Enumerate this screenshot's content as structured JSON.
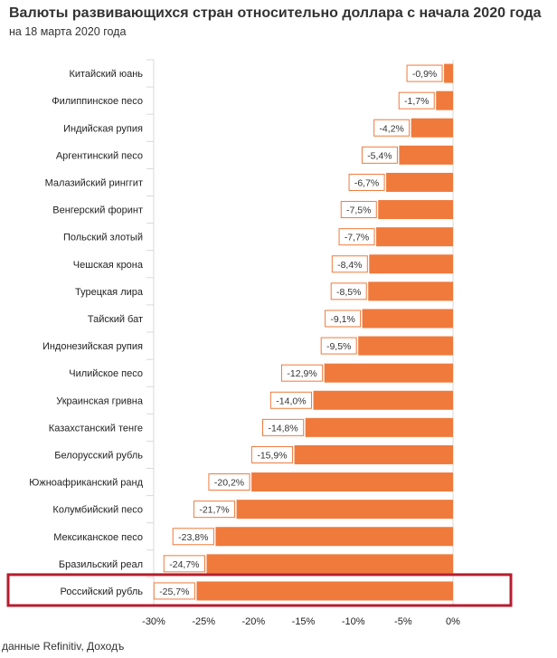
{
  "title": "Валюты развивающихся стран относительно доллара с начала 2020 года",
  "subtitle": "на 18 марта 2020 года",
  "source": "данные Refinitiv, Доходъ",
  "colors": {
    "bar": "#ef7a3c",
    "highlight": "#b71c2e",
    "label_border": "#ef7a3c",
    "grid": "#d9d9d9"
  },
  "chart_data": {
    "type": "bar",
    "orientation": "horizontal",
    "title": "Валюты развивающихся стран относительно доллара с начала 2020 года",
    "categories": [
      "Китайский юань",
      "Филиппинское песо",
      "Индийская рупия",
      "Аргентинский песо",
      "Малазийский ринггит",
      "Венгерский форинт",
      "Польский злотый",
      "Чешская крона",
      "Турецкая лира",
      "Тайский бат",
      "Индонезийская рупия",
      "Чилийское песо",
      "Украинская гривна",
      "Казахстанский тенге",
      "Белорусский рубль",
      "Южноафриканский ранд",
      "Колумбийский песо",
      "Мексиканское песо",
      "Бразильский реал",
      "Российский рубль"
    ],
    "values": [
      -0.9,
      -1.7,
      -4.2,
      -5.4,
      -6.7,
      -7.5,
      -7.7,
      -8.4,
      -8.5,
      -9.1,
      -9.5,
      -12.9,
      -14.0,
      -14.8,
      -15.9,
      -20.2,
      -21.7,
      -23.8,
      -24.7,
      -25.7
    ],
    "data_labels": [
      "-0,9%",
      "-1,7%",
      "-4,2%",
      "-5,4%",
      "-6,7%",
      "-7,5%",
      "-7,7%",
      "-8,4%",
      "-8,5%",
      "-9,1%",
      "-9,5%",
      "-12,9%",
      "-14,0%",
      "-14,8%",
      "-15,9%",
      "-20,2%",
      "-21,7%",
      "-23,8%",
      "-24,7%",
      "-25,7%"
    ],
    "highlighted_category": "Российский рубль",
    "xlim": [
      -30,
      0
    ],
    "xticks": [
      -30,
      -25,
      -20,
      -15,
      -10,
      -5,
      0
    ],
    "xtick_labels": [
      "-30%",
      "-25%",
      "-20%",
      "-15%",
      "-10%",
      "-5%",
      "0%"
    ],
    "xlabel": "",
    "ylabel": ""
  }
}
